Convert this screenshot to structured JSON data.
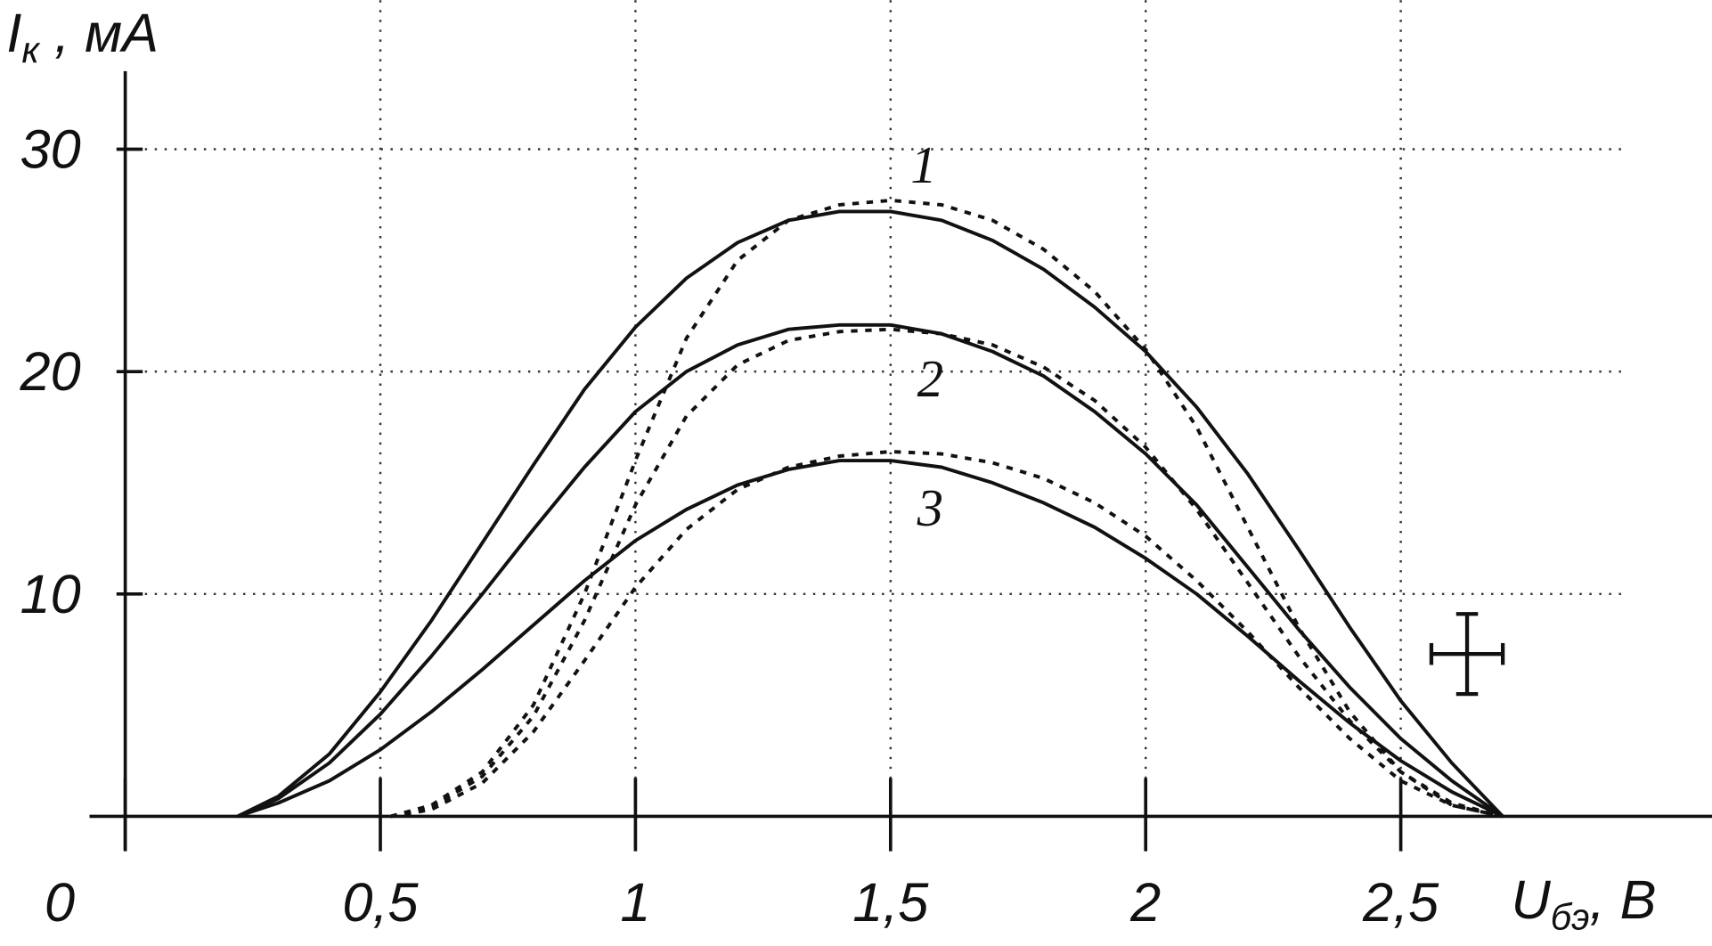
{
  "chart_data": {
    "type": "line",
    "x_label": {
      "main": "U",
      "sub": "бэ",
      "rest": ", В"
    },
    "y_label": {
      "main": "I",
      "sub": "к",
      "rest": " , мА"
    },
    "xlim": [
      -0.07,
      3.11
    ],
    "ylim": [
      -1.5,
      36.7
    ],
    "xticks": [
      {
        "value": 0,
        "label": "0"
      },
      {
        "value": 0.5,
        "label": "0,5"
      },
      1,
      {
        "value": 1.5,
        "label": "1,5"
      },
      2,
      {
        "value": 2.5,
        "label": "2,5"
      }
    ],
    "yticks": [
      10,
      20,
      30
    ],
    "grid": true,
    "curve_labels": [
      "1",
      "2",
      "3"
    ],
    "series": [
      {
        "color": "#111111",
        "dash": "solid",
        "x": [
          0.22,
          0.3,
          0.4,
          0.5,
          0.6,
          0.7,
          0.8,
          0.9,
          1.0,
          1.1,
          1.2,
          1.3,
          1.4,
          1.5,
          1.6,
          1.7,
          1.8,
          1.9,
          2.0,
          2.1,
          2.2,
          2.3,
          2.4,
          2.5,
          2.6,
          2.7
        ],
        "values": [
          0,
          0.9,
          2.8,
          5.6,
          8.8,
          12.3,
          15.8,
          19.2,
          22.0,
          24.2,
          25.8,
          26.8,
          27.2,
          27.2,
          26.8,
          25.9,
          24.6,
          22.9,
          20.9,
          18.4,
          15.4,
          12.0,
          8.5,
          5.2,
          2.4,
          0
        ]
      },
      {
        "color": "#111111",
        "dash": "solid",
        "x": [
          0.22,
          0.3,
          0.4,
          0.5,
          0.6,
          0.7,
          0.8,
          0.9,
          1.0,
          1.1,
          1.2,
          1.3,
          1.4,
          1.5,
          1.6,
          1.7,
          1.8,
          1.9,
          2.0,
          2.1,
          2.2,
          2.3,
          2.4,
          2.5,
          2.6,
          2.7
        ],
        "values": [
          0,
          0.8,
          2.4,
          4.6,
          7.2,
          10.0,
          12.9,
          15.7,
          18.2,
          20.0,
          21.2,
          21.9,
          22.1,
          22.1,
          21.7,
          20.9,
          19.8,
          18.2,
          16.3,
          14.0,
          11.2,
          8.4,
          5.8,
          3.5,
          1.6,
          0
        ]
      },
      {
        "color": "#111111",
        "dash": "solid",
        "x": [
          0.22,
          0.3,
          0.4,
          0.5,
          0.6,
          0.7,
          0.8,
          0.9,
          1.0,
          1.1,
          1.2,
          1.3,
          1.4,
          1.5,
          1.6,
          1.7,
          1.8,
          1.9,
          2.0,
          2.1,
          2.2,
          2.3,
          2.4,
          2.5,
          2.6,
          2.7
        ],
        "values": [
          0,
          0.6,
          1.6,
          3.0,
          4.7,
          6.6,
          8.6,
          10.6,
          12.4,
          13.8,
          14.9,
          15.6,
          16.0,
          16.0,
          15.7,
          15.0,
          14.1,
          13.0,
          11.6,
          10.0,
          8.1,
          6.1,
          4.2,
          2.5,
          1.1,
          0
        ]
      },
      {
        "color": "#111111",
        "dash": "dotted",
        "x": [
          0.52,
          0.6,
          0.7,
          0.8,
          0.9,
          1.0,
          1.1,
          1.2,
          1.3,
          1.4,
          1.5,
          1.6,
          1.7,
          1.8,
          1.9,
          2.0,
          2.1,
          2.2,
          2.3,
          2.4,
          2.5,
          2.6,
          2.7
        ],
        "values": [
          0,
          0.5,
          2.0,
          5.0,
          10.0,
          16.0,
          21.5,
          25.0,
          26.8,
          27.5,
          27.7,
          27.5,
          26.8,
          25.5,
          23.6,
          21.0,
          17.5,
          13.0,
          8.5,
          4.7,
          2.0,
          0.5,
          0
        ]
      },
      {
        "color": "#111111",
        "dash": "dotted",
        "x": [
          0.52,
          0.6,
          0.7,
          0.8,
          0.9,
          1.0,
          1.1,
          1.2,
          1.3,
          1.4,
          1.5,
          1.6,
          1.7,
          1.8,
          1.9,
          2.0,
          2.1,
          2.2,
          2.3,
          2.4,
          2.5,
          2.6,
          2.7
        ],
        "values": [
          0,
          0.4,
          1.8,
          4.5,
          8.8,
          14.0,
          18.0,
          20.3,
          21.4,
          21.8,
          21.9,
          21.7,
          21.2,
          20.2,
          18.7,
          16.6,
          13.8,
          10.5,
          7.2,
          4.3,
          2.0,
          0.6,
          0
        ]
      },
      {
        "color": "#111111",
        "dash": "dotted",
        "x": [
          0.52,
          0.6,
          0.7,
          0.8,
          0.9,
          1.0,
          1.1,
          1.2,
          1.3,
          1.4,
          1.5,
          1.6,
          1.7,
          1.8,
          1.9,
          2.0,
          2.1,
          2.2,
          2.3,
          2.4,
          2.5,
          2.6,
          2.7
        ],
        "values": [
          0,
          0.3,
          1.5,
          3.8,
          7.0,
          10.3,
          12.9,
          14.7,
          15.7,
          16.2,
          16.4,
          16.3,
          15.9,
          15.2,
          14.1,
          12.6,
          10.6,
          8.3,
          5.8,
          3.5,
          1.6,
          0.5,
          0
        ]
      }
    ],
    "error_marker": {
      "x": 2.63,
      "y": 7.3,
      "xerr": 0.07,
      "yerr": 1.8
    }
  }
}
